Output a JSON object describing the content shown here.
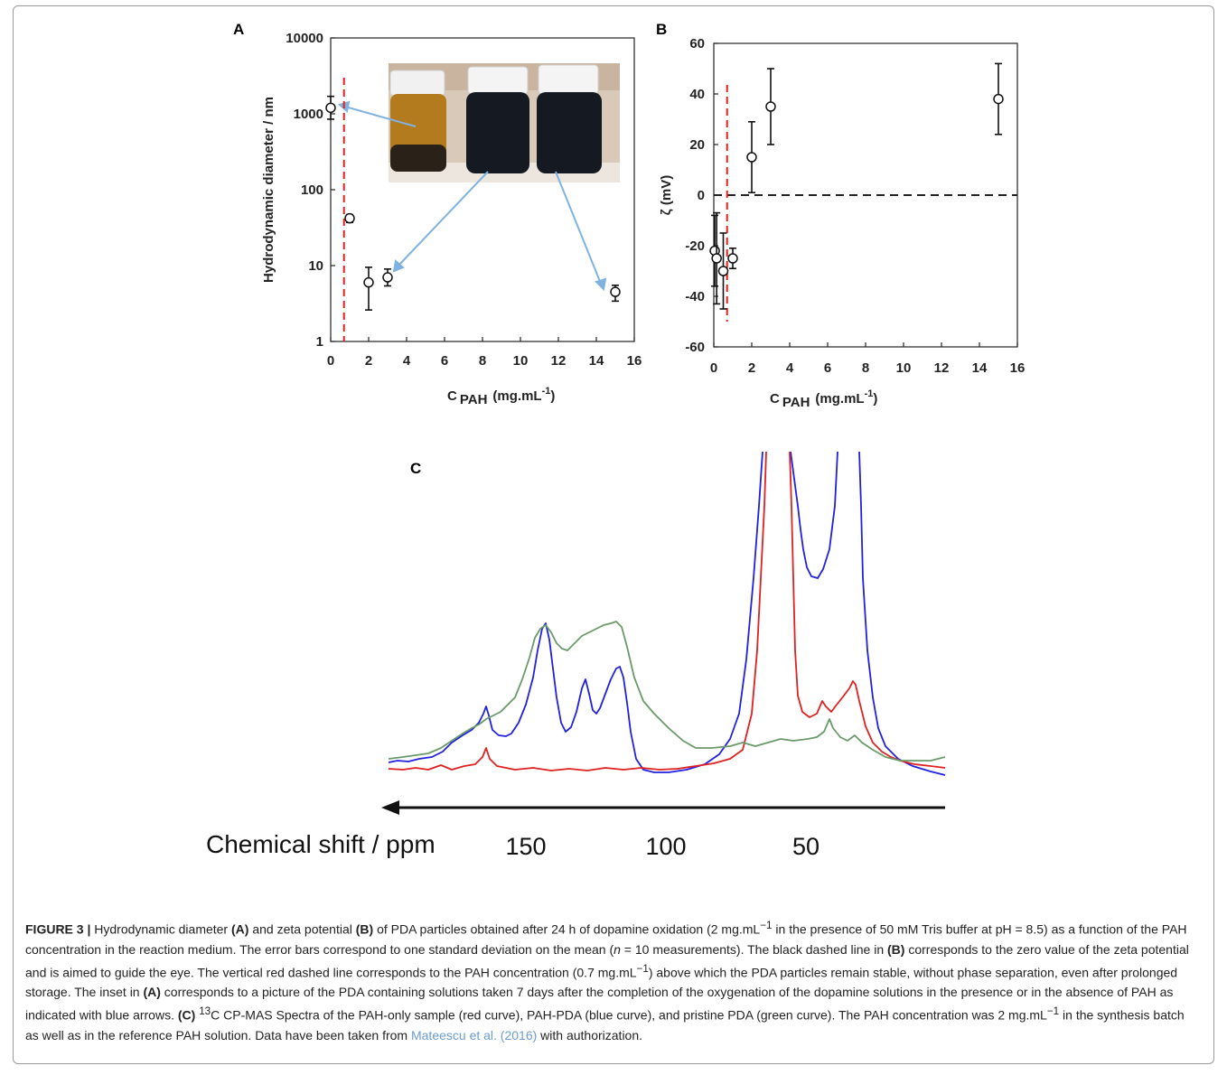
{
  "figure": {
    "panelA": {
      "label": "A",
      "ylabel": "Hydrodynamic diameter / nm",
      "xlabel_main": "C",
      "xlabel_sub": "PAH",
      "xlabel_unit_open": "(mg.mL",
      "xlabel_unit_exp": "-1",
      "xlabel_unit_close": ")"
    },
    "panelB": {
      "label": "B",
      "ylabel": "ζ (mV)",
      "xlabel_main": "C",
      "xlabel_sub": "PAH",
      "xlabel_unit_open": "(mg.mL",
      "xlabel_unit_exp": "-1",
      "xlabel_unit_close": ")"
    },
    "panelC": {
      "label": "C",
      "axis_label": "Chemical shift / ppm"
    }
  },
  "chart_data": [
    {
      "panel": "A",
      "type": "scatter",
      "x_ticks": [
        "0",
        "2",
        "4",
        "6",
        "8",
        "10",
        "12",
        "14",
        "16"
      ],
      "y_ticks": [
        "1",
        "10",
        "100",
        "1000",
        "10000"
      ],
      "xlim": [
        0,
        16
      ],
      "ylim": [
        1,
        10000
      ],
      "y_scale": "log",
      "points": [
        {
          "x": 0,
          "y": 1200,
          "err_low": 850,
          "err_high": 1700
        },
        {
          "x": 1,
          "y": 42,
          "err_low": 37,
          "err_high": 47
        },
        {
          "x": 2,
          "y": 6,
          "err_low": 2.6,
          "err_high": 9.5
        },
        {
          "x": 3,
          "y": 7,
          "err_low": 5.4,
          "err_high": 9
        },
        {
          "x": 15,
          "y": 4.5,
          "err_low": 3.4,
          "err_high": 5.5
        }
      ],
      "vline_x": 0.7,
      "vline_color": "#e02020",
      "inset": "photo of three PDA solution vials",
      "arrow_color": "#7fb2e0"
    },
    {
      "panel": "B",
      "type": "scatter",
      "x_ticks": [
        "0",
        "2",
        "4",
        "6",
        "8",
        "10",
        "12",
        "14",
        "16"
      ],
      "y_ticks": [
        "-60",
        "-40",
        "-20",
        "0",
        "20",
        "40",
        "60"
      ],
      "xlim": [
        0,
        16
      ],
      "ylim": [
        -60,
        60
      ],
      "points": [
        {
          "x": 0.05,
          "y": -22,
          "err": 14
        },
        {
          "x": 0.15,
          "y": -25,
          "err": 18
        },
        {
          "x": 0.5,
          "y": -30,
          "err": 15
        },
        {
          "x": 1,
          "y": -25,
          "err": 4
        },
        {
          "x": 2,
          "y": 15,
          "err": 14
        },
        {
          "x": 3,
          "y": 35,
          "err": 15
        },
        {
          "x": 15,
          "y": 38,
          "err": 14
        }
      ],
      "hline_y": 0,
      "vline_x": 0.7,
      "vline_color": "#e02020"
    },
    {
      "panel": "C",
      "type": "line",
      "x_tick_labels": [
        "150",
        "100",
        "50"
      ],
      "x_tick_values": [
        150,
        100,
        50
      ],
      "x_direction": "decreasing to the right",
      "series": [
        {
          "color": "#2020e0"
        },
        {
          "color": "#e02020"
        },
        {
          "color": "#6a9a6a"
        }
      ]
    }
  ],
  "caption": {
    "label": "FIGURE 3 |",
    "t1": " Hydrodynamic diameter ",
    "a": "(A)",
    "t2": " and zeta potential ",
    "b": "(B)",
    "t3": " of PDA particles obtained after 24 h of dopamine oxidation (2 mg.mL",
    "sup1": "−1",
    "t4": " in the presence of 50 mM Tris buffer at pH = 8.5) as a function of the PAH concentration in the reaction medium. The error bars correspond to one standard deviation on the mean (",
    "n": "n",
    "t5": " = 10 measurements). The black dashed line in ",
    "b2": "(B)",
    "t6": " corresponds to the zero value of the zeta potential and is aimed to guide the eye. The vertical red dashed line corresponds to the PAH concentration (0.7 mg.mL",
    "sup2": "−1",
    "t7": ") above which the PDA particles remain stable, without phase separation, even after prolonged storage. The inset in ",
    "a2": "(A)",
    "t8": " corresponds to a picture of the PDA containing solutions taken 7 days after the completion of the oxygenation of the dopamine solutions in the presence or in the absence of PAH as indicated with blue arrows. ",
    "c": "(C)",
    "sup3": "13",
    "t9": "C CP-MAS Spectra of the PAH-only sample (red curve), PAH-PDA (blue curve), and pristine PDA (green curve). The PAH concentration was 2 mg.mL",
    "sup4": "−1",
    "t10": " in the synthesis batch as well as in the reference PAH solution. Data have been taken from ",
    "ref": "Mateescu et al. (2016)",
    "t11": " with authorization."
  }
}
